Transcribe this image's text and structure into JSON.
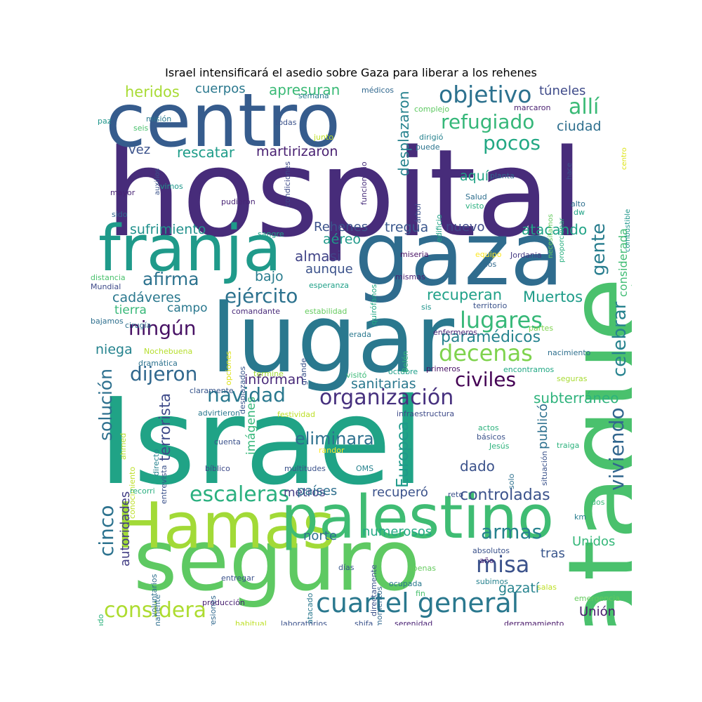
{
  "title": "Israel intensificará el asedio sobre Gaza para liberar a los rehenes",
  "words": [
    {
      "text": "hospital",
      "color": "#472c7a"
    },
    {
      "text": "Israel",
      "color": "#20a386"
    },
    {
      "text": "ataque",
      "color": "#4ac16d"
    },
    {
      "text": "seguro",
      "color": "#5ec962"
    },
    {
      "text": "lugar",
      "color": "#2a788e"
    },
    {
      "text": "gaza",
      "color": "#2f6c8e"
    },
    {
      "text": "centro",
      "color": "#365c8d"
    },
    {
      "text": "Hamas",
      "color": "#a2da37"
    },
    {
      "text": "palestino",
      "color": "#3fbc73"
    },
    {
      "text": "franja",
      "color": "#1f9a8a"
    },
    {
      "text": "cuartel general",
      "color": "#2a788e"
    },
    {
      "text": "organización",
      "color": "#46307e"
    },
    {
      "text": "objetivo",
      "color": "#2c718e"
    },
    {
      "text": "allí",
      "color": "#3aba76"
    },
    {
      "text": "ejército",
      "color": "#2c728e"
    },
    {
      "text": "lugares",
      "color": "#37b878"
    },
    {
      "text": "decenas",
      "color": "#7fd34e"
    },
    {
      "text": "ningún",
      "color": "#471164"
    },
    {
      "text": "dijeron",
      "color": "#31688e"
    },
    {
      "text": "civiles",
      "color": "#440154"
    },
    {
      "text": "navidad",
      "color": "#2a788e"
    },
    {
      "text": "considera",
      "color": "#addc30"
    },
    {
      "text": "escaleras",
      "color": "#2ab07f"
    },
    {
      "text": "misa",
      "color": "#3b528b"
    },
    {
      "text": "refugiado",
      "color": "#35b779"
    },
    {
      "text": "pocos",
      "color": "#22a884"
    },
    {
      "text": "afirma",
      "color": "#2c728e"
    },
    {
      "text": "solución",
      "color": "#2d708e"
    },
    {
      "text": "cinco",
      "color": "#2c728e"
    },
    {
      "text": "viviendo",
      "color": "#31668e"
    },
    {
      "text": "celebrar",
      "color": "#26828e"
    },
    {
      "text": "gente",
      "color": "#287d8e"
    },
    {
      "text": "armas",
      "color": "#26828e"
    },
    {
      "text": "terrorista",
      "color": "#3e4a89"
    },
    {
      "text": "autoridades",
      "color": "#433e85"
    },
    {
      "text": "Europea",
      "color": "#1f998a"
    },
    {
      "text": "controladas",
      "color": "#3b528b"
    },
    {
      "text": "eliminara",
      "color": "#2d708e"
    },
    {
      "text": "informan",
      "color": "#482979"
    },
    {
      "text": "sanitarias",
      "color": "#2a788e"
    },
    {
      "text": "paramédicos",
      "color": "#25838e"
    },
    {
      "text": "recuperan",
      "color": "#1fa188"
    },
    {
      "text": "Muertos",
      "color": "#1e9c89"
    },
    {
      "text": "subterráneo",
      "color": "#2eb37c"
    },
    {
      "text": "sufrimiento",
      "color": "#21918c"
    },
    {
      "text": "atacando",
      "color": "#20a386"
    },
    {
      "text": "desplazaron",
      "color": "#26828e"
    },
    {
      "text": "martirizaron",
      "color": "#482071"
    },
    {
      "text": "rescatar",
      "color": "#1e9c89"
    },
    {
      "text": "apresuran",
      "color": "#3aba76"
    },
    {
      "text": "cuerpos",
      "color": "#2a788e"
    },
    {
      "text": "heridos",
      "color": "#a8db34"
    },
    {
      "text": "túneles",
      "color": "#3e4a89"
    },
    {
      "text": "ciudad",
      "color": "#2e6f8e"
    },
    {
      "text": "vez",
      "color": "#3b528b"
    },
    {
      "text": "aquí",
      "color": "#20a386"
    },
    {
      "text": "tregua",
      "color": "#39568c"
    },
    {
      "text": "nuevo",
      "color": "#3e4989"
    },
    {
      "text": "Rehenes",
      "color": "#3b528b"
    },
    {
      "text": "aéreo",
      "color": "#1f998a"
    },
    {
      "text": "almasi",
      "color": "#414487"
    },
    {
      "text": "aunque",
      "color": "#3b528b"
    },
    {
      "text": "bajo",
      "color": "#287c8e"
    },
    {
      "text": "cadáveres",
      "color": "#2a788e"
    },
    {
      "text": "tierra",
      "color": "#37b878"
    },
    {
      "text": "campo",
      "color": "#2a788e"
    },
    {
      "text": "niega",
      "color": "#25838e"
    },
    {
      "text": "imágenes",
      "color": "#35b779"
    },
    {
      "text": "metros",
      "color": "#433e85"
    },
    {
      "text": "países",
      "color": "#2e6f8e"
    },
    {
      "text": "dado",
      "color": "#3b528b"
    },
    {
      "text": "recuperó",
      "color": "#3b528b"
    },
    {
      "text": "norte",
      "color": "#2d708e"
    },
    {
      "text": "numerosos",
      "color": "#22a884"
    },
    {
      "text": "publicó",
      "color": "#2d708e"
    },
    {
      "text": "Unidos",
      "color": "#35b779"
    },
    {
      "text": "tras",
      "color": "#39568c"
    },
    {
      "text": "gazatí",
      "color": "#25838e"
    },
    {
      "text": "Unión",
      "color": "#481a6c"
    },
    {
      "text": "considerada",
      "color": "#3fbc73"
    },
    {
      "text": "médicos",
      "color": "#31688e"
    },
    {
      "text": "semana",
      "color": "#287d8e"
    },
    {
      "text": "misión",
      "color": "#29798e"
    },
    {
      "text": "seis",
      "color": "#4ac16d"
    },
    {
      "text": "paz",
      "color": "#1f968b"
    },
    {
      "text": "todas",
      "color": "#3b528b"
    },
    {
      "text": "complejo",
      "color": "#5ec962"
    },
    {
      "text": "junto",
      "color": "#bddf26"
    },
    {
      "text": "dirigió",
      "color": "#26828e"
    },
    {
      "text": "puede",
      "color": "#2b748e"
    },
    {
      "text": "marcaron",
      "color": "#481f70"
    },
    {
      "text": "mayor",
      "color": "#482374"
    },
    {
      "text": "sido",
      "color": "#31688e"
    },
    {
      "text": "vimos",
      "color": "#1f988b"
    },
    {
      "text": "auxilios",
      "color": "#3b528b"
    },
    {
      "text": "pudieron",
      "color": "#482475"
    },
    {
      "text": "condiciones",
      "color": "#3e4a89"
    },
    {
      "text": "funcionario",
      "color": "#472d7b"
    },
    {
      "text": "árbol",
      "color": "#3b528b"
    },
    {
      "text": "edificio",
      "color": "#20a386"
    },
    {
      "text": "Salud",
      "color": "#2e6f8e"
    },
    {
      "text": "visto",
      "color": "#2ab07f"
    },
    {
      "text": "planta",
      "color": "#31688e"
    },
    {
      "text": "necesitamos",
      "color": "#65cb5e"
    },
    {
      "text": "proporcionar",
      "color": "#29af7f"
    },
    {
      "text": "hace",
      "color": "#3b528b"
    },
    {
      "text": "combustible",
      "color": "#1f968b"
    },
    {
      "text": "centro",
      "color": "#dde318"
    },
    {
      "text": "dw",
      "color": "#20a386"
    },
    {
      "text": "alto",
      "color": "#2e6f8e"
    },
    {
      "text": "sangre",
      "color": "#1fa088"
    },
    {
      "text": "quirófanos",
      "color": "#22a884"
    },
    {
      "text": "miseria",
      "color": "#471164"
    },
    {
      "text": "equipo",
      "color": "#fde725"
    },
    {
      "text": "Jordania",
      "color": "#443983"
    },
    {
      "text": "caos",
      "color": "#30698e"
    },
    {
      "text": "distancia",
      "color": "#4ac16d"
    },
    {
      "text": "Mundial",
      "color": "#3e4a89"
    },
    {
      "text": "esperanza",
      "color": "#1fa088"
    },
    {
      "text": "mismas",
      "color": "#482173"
    },
    {
      "text": "sis",
      "color": "#1f948c"
    },
    {
      "text": "territorio",
      "color": "#3b528b"
    },
    {
      "text": "comandante",
      "color": "#482979"
    },
    {
      "text": "estabilidad",
      "color": "#65cb5e"
    },
    {
      "text": "bajamos",
      "color": "#2e6f8e"
    },
    {
      "text": "cirugía",
      "color": "#2e6f8e"
    },
    {
      "text": "opciones",
      "color": "#dde318"
    },
    {
      "text": "desplazados",
      "color": "#39568c"
    },
    {
      "text": "liderada",
      "color": "#2a788e"
    },
    {
      "text": "Belén",
      "color": "#35b779"
    },
    {
      "text": "enfermeros",
      "color": "#482475"
    },
    {
      "text": "partes",
      "color": "#7fd34e"
    },
    {
      "text": "Nochebuena",
      "color": "#b5de2b"
    },
    {
      "text": "nacimiento",
      "color": "#2e6f8e"
    },
    {
      "text": "dramática",
      "color": "#2c728e"
    },
    {
      "text": "grande",
      "color": "#3b528b"
    },
    {
      "text": "termine",
      "color": "#a2da37"
    },
    {
      "text": "visitó",
      "color": "#3aba76"
    },
    {
      "text": "octubre",
      "color": "#1f9e89"
    },
    {
      "text": "primeros",
      "color": "#471164"
    },
    {
      "text": "encontramos",
      "color": "#22a884"
    },
    {
      "text": "seguras",
      "color": "#a8db34"
    },
    {
      "text": "claramente",
      "color": "#39568c"
    },
    {
      "text": "advirtieron",
      "color": "#2a788e"
    },
    {
      "text": "festividad",
      "color": "#bddf26"
    },
    {
      "text": "infraestructura",
      "color": "#3e4a89"
    },
    {
      "text": "ahmed",
      "color": "#b5de2b"
    },
    {
      "text": "conocimiento",
      "color": "#bddf26"
    },
    {
      "text": "directo",
      "color": "#26828e"
    },
    {
      "text": "entrevista",
      "color": "#3b528b"
    },
    {
      "text": "cuenta",
      "color": "#3b528b"
    },
    {
      "text": "randor",
      "color": "#fde725"
    },
    {
      "text": "actos",
      "color": "#2db27d"
    },
    {
      "text": "básicos",
      "color": "#3b528b"
    },
    {
      "text": "Jesús",
      "color": "#2eb37c"
    },
    {
      "text": "situación",
      "color": "#3b528b"
    },
    {
      "text": "traiga",
      "color": "#2db27d"
    },
    {
      "text": "bíblico",
      "color": "#3e4a89"
    },
    {
      "text": "multitudes",
      "color": "#3b528b"
    },
    {
      "text": "OMS",
      "color": "#26828e"
    },
    {
      "text": "solo",
      "color": "#2d708e"
    },
    {
      "text": "recorri",
      "color": "#29af7f"
    },
    {
      "text": "reto",
      "color": "#3b528b"
    },
    {
      "text": "dos",
      "color": "#3aba76"
    },
    {
      "text": "km",
      "color": "#287d8e"
    },
    {
      "text": "voluntarios",
      "color": "#2e6f8e"
    },
    {
      "text": "permanente",
      "color": "#2e6f8e"
    },
    {
      "text": "impresiones",
      "color": "#31688e"
    },
    {
      "text": "días",
      "color": "#39568c"
    },
    {
      "text": "atacado",
      "color": "#2a788e"
    },
    {
      "text": "directamente",
      "color": "#3b528b"
    },
    {
      "text": "momentos",
      "color": "#31688e"
    },
    {
      "text": "absolutos",
      "color": "#3b528b"
    },
    {
      "text": "año",
      "color": "#482173"
    },
    {
      "text": "apenas",
      "color": "#65cb5e"
    },
    {
      "text": "ocupada",
      "color": "#2a788e"
    },
    {
      "text": "fin",
      "color": "#4ac16d"
    },
    {
      "text": "subimos",
      "color": "#26828e"
    },
    {
      "text": "salas",
      "color": "#bddf26"
    },
    {
      "text": "emergencia",
      "color": "#65cb5e"
    },
    {
      "text": "ocupado",
      "color": "#2db27d"
    },
    {
      "text": "entregar",
      "color": "#3b528b"
    },
    {
      "text": "producción",
      "color": "#482071"
    },
    {
      "text": "habitual",
      "color": "#bddf26"
    },
    {
      "text": "laboratorios",
      "color": "#3b528b"
    },
    {
      "text": "shifa",
      "color": "#3b528b"
    },
    {
      "text": "serenidad",
      "color": "#482173"
    },
    {
      "text": "derramamiento",
      "color": "#481769"
    }
  ]
}
